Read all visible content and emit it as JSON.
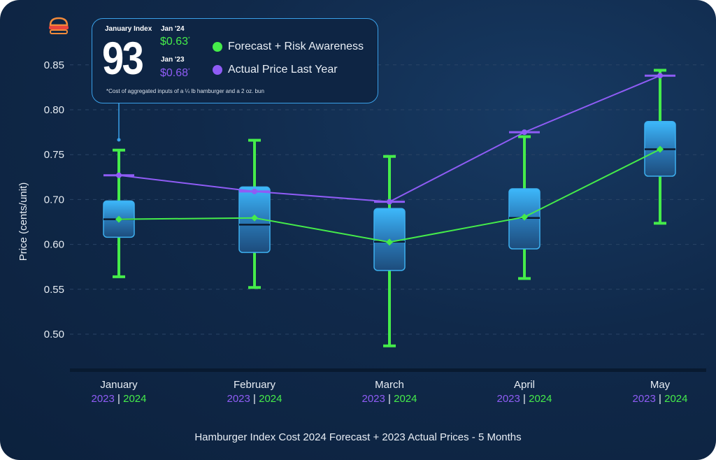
{
  "chart_data": {
    "type": "box",
    "title": "Hamburger Index Cost 2024 Forecast + 2023 Actual Prices - 5 Months",
    "ylabel": "Price (cents/unit)",
    "xlabel": "",
    "yticks": [
      0.5,
      0.55,
      0.6,
      0.7,
      0.75,
      0.8,
      0.85
    ],
    "ytick_labels": [
      "0.50",
      "0.55",
      "0.60",
      "0.70",
      "0.75",
      "0.80",
      "0.85"
    ],
    "grid": true,
    "categories": [
      "January",
      "February",
      "March",
      "April",
      "May"
    ],
    "category_sublabels": {
      "a": "2023",
      "sep": "|",
      "b": "2024"
    },
    "boxes": [
      {
        "whisker_low": 0.564,
        "q1": 0.616,
        "median": 0.656,
        "q3": 0.697,
        "whisker_high": 0.755
      },
      {
        "whisker_low": 0.552,
        "q1": 0.591,
        "median": 0.644,
        "q3": 0.714,
        "whisker_high": 0.766
      },
      {
        "whisker_low": 0.487,
        "q1": 0.571,
        "median": 0.606,
        "q3": 0.68,
        "whisker_high": 0.748
      },
      {
        "whisker_low": 0.562,
        "q1": 0.595,
        "median": 0.659,
        "q3": 0.712,
        "whisker_high": 0.77
      },
      {
        "whisker_low": 0.647,
        "q1": 0.726,
        "median": 0.756,
        "q3": 0.787,
        "whisker_high": 0.844
      }
    ],
    "series": [
      {
        "name": "Forecast + Risk Awareness",
        "color": "#45ec4a",
        "values": [
          0.656,
          0.659,
          0.605,
          0.661,
          0.756
        ]
      },
      {
        "name": "Actual Price Last Year",
        "color": "#8f5cf5",
        "values": [
          0.727,
          0.709,
          0.695,
          0.775,
          0.838
        ]
      }
    ],
    "legend": "top-center",
    "colors": {
      "box": "#3ab4f5",
      "background": "#0e2544"
    }
  },
  "infobox": {
    "index_label": "January Index",
    "index_value": "93",
    "y24_label": "Jan '24",
    "y24_price": "$0.63",
    "y23_label": "Jan '23",
    "y23_price": "$0.68",
    "asterisk": "*",
    "footnote": "*Cost of aggregated inputs of a ¼ lb hamburger and a 2 oz. bun",
    "icon": "hamburger-icon"
  }
}
